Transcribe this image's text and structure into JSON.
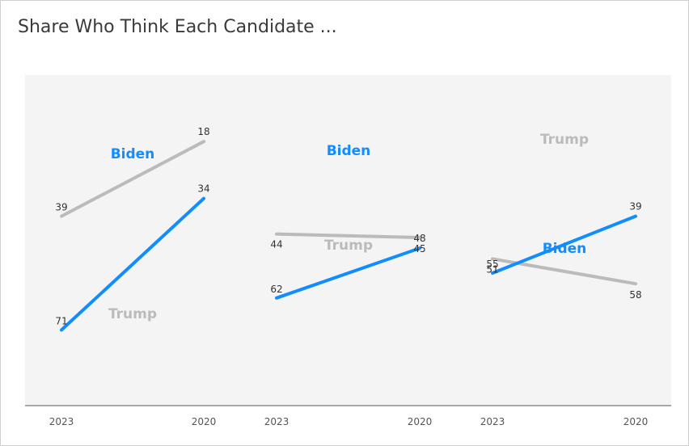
{
  "title": "Share Who Think Each Candidate ...",
  "colors": {
    "biden": "#118DFF",
    "trump": "#BBBBBB",
    "plot_bg": "#F5F4F5",
    "axis": "#A8A8A8",
    "value_text": "#333333"
  },
  "chart_data": [
    {
      "type": "line",
      "x": [
        "2023",
        "2020"
      ],
      "series": [
        {
          "name": "Biden",
          "values": [
            71,
            34
          ],
          "color": "#118DFF"
        },
        {
          "name": "Trump",
          "values": [
            39,
            18
          ],
          "color": "#BBBBBB"
        }
      ],
      "ylim": [
        10,
        80
      ],
      "inverted_y": true
    },
    {
      "type": "line",
      "x": [
        "2023",
        "2020"
      ],
      "series": [
        {
          "name": "Biden",
          "values": [
            62,
            48
          ],
          "color": "#118DFF"
        },
        {
          "name": "Trump",
          "values": [
            44,
            45
          ],
          "color": "#BBBBBB"
        }
      ],
      "ylim": [
        10,
        80
      ],
      "inverted_y": true
    },
    {
      "type": "line",
      "x": [
        "2023",
        "2020"
      ],
      "series": [
        {
          "name": "Biden",
          "values": [
            55,
            39
          ],
          "color": "#118DFF"
        },
        {
          "name": "Trump",
          "values": [
            51,
            58
          ],
          "color": "#BBBBBB"
        }
      ],
      "ylim": [
        10,
        80
      ],
      "inverted_y": true
    }
  ]
}
